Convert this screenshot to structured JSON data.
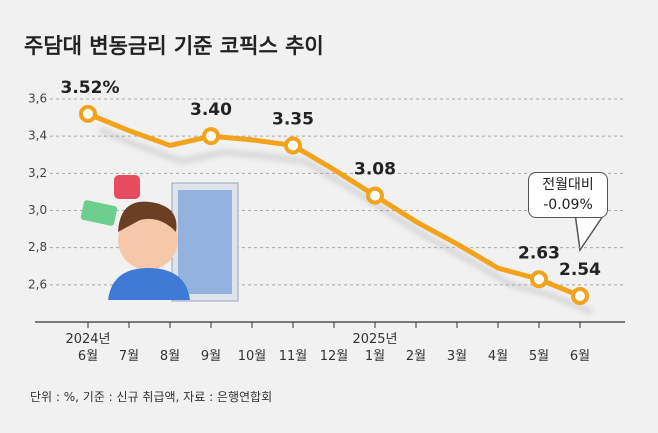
{
  "chart_data": {
    "type": "line",
    "title": "주담대 변동금리 기준 코픽스 추이",
    "categories": [
      "2024년\n6월",
      "7월",
      "8월",
      "9월",
      "10월",
      "11월",
      "12월",
      "2025년\n1월",
      "2월",
      "3월",
      "4월",
      "5월",
      "6월"
    ],
    "series": [
      {
        "name": "코픽스",
        "color": "#f2a31b",
        "values": [
          3.52,
          3.43,
          3.35,
          3.4,
          3.38,
          3.35,
          3.22,
          3.08,
          2.94,
          2.82,
          2.69,
          2.63,
          2.54
        ],
        "value_labels": [
          "3.52%",
          null,
          null,
          "3.40",
          null,
          "3.35",
          null,
          "3.08",
          null,
          null,
          null,
          "2.63",
          "2.54"
        ]
      }
    ],
    "markers": [
      0,
      3,
      5,
      7,
      11,
      12
    ],
    "ylim": [
      2.4,
      3.6
    ],
    "yticks": [
      {
        "value": 2.6,
        "label": "2,6"
      },
      {
        "value": 2.8,
        "label": "2,8"
      },
      {
        "value": 3.0,
        "label": "3,0"
      },
      {
        "value": 3.2,
        "label": "3,2"
      },
      {
        "value": 3.4,
        "label": "3,4"
      },
      {
        "value": 3.6,
        "label": "3,6"
      }
    ],
    "grid": true,
    "annotation": "전월대비\n-0.09%",
    "footnote": "단위 : %, 기준 : 신규 취급액, 자료 : 은행연합회"
  }
}
